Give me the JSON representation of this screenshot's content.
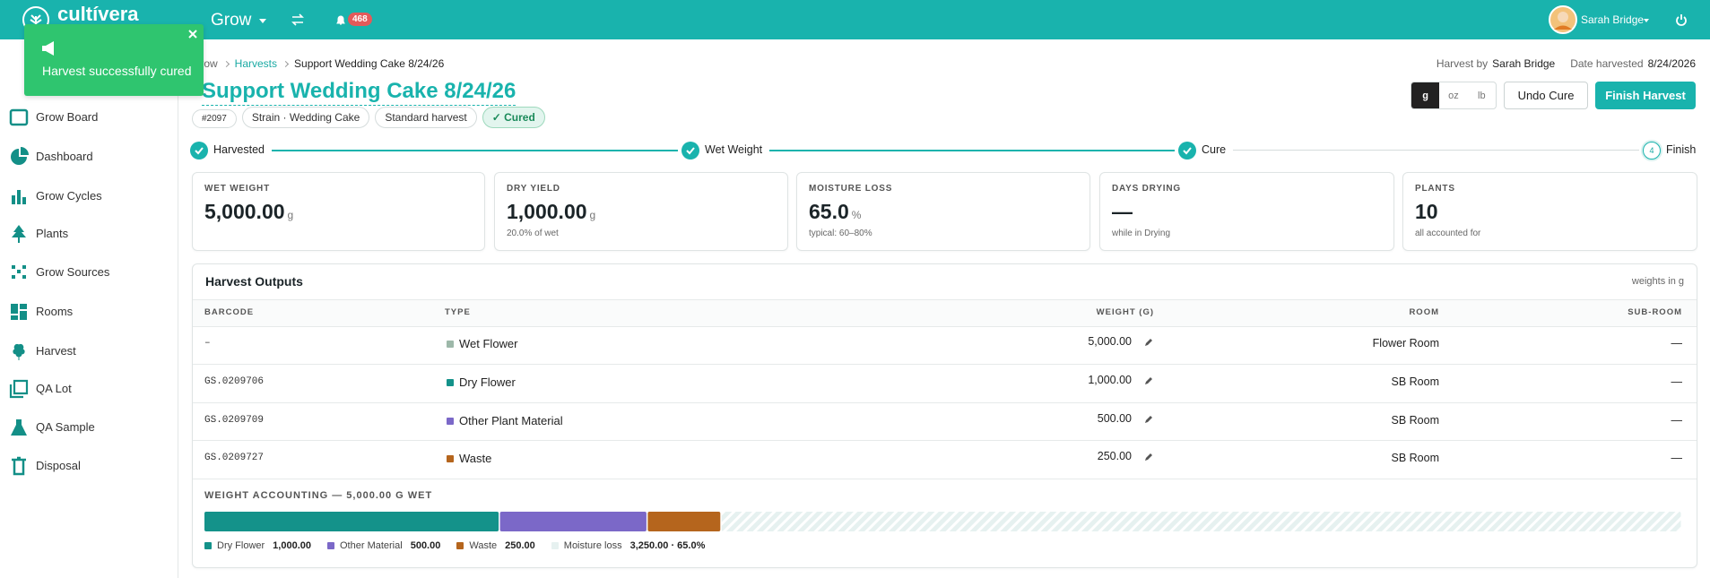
{
  "header": {
    "logo": "cultívera",
    "menu": "Grow",
    "notifications": "468",
    "user": "Sarah Bridge"
  },
  "toast": {
    "message": "Harvest successfully cured"
  },
  "sidebar": {
    "items": [
      "Grow Board",
      "Dashboard",
      "Grow Cycles",
      "Plants",
      "Grow Sources",
      "Rooms",
      "Harvest",
      "QA Lot",
      "QA Sample",
      "Disposal"
    ]
  },
  "breadcrumb": [
    "Grow",
    "Harvests",
    "Support Wedding Cake 8/24/26"
  ],
  "meta": {
    "harvest_by_label": "Harvest by",
    "harvest_by": "Sarah Bridge",
    "date_label": "Date harvested",
    "date": "8/24/2026"
  },
  "title": "Support Wedding Cake 8/24/26",
  "chips": [
    "#2097",
    "Strain · Wedding Cake",
    "Standard harvest",
    "✓ Cured"
  ],
  "units": [
    "g",
    "oz",
    "lb"
  ],
  "buttons": [
    "Undo Cure",
    "Finish Harvest"
  ],
  "steps": [
    {
      "label": "Harvested",
      "done": true
    },
    {
      "label": "Wet Weight",
      "done": true
    },
    {
      "label": "Cure",
      "done": true
    },
    {
      "label": "Finish",
      "number": 4,
      "done": false
    }
  ],
  "stats": [
    {
      "label": "WET WEIGHT",
      "value": "5,000.00",
      "unit": "g"
    },
    {
      "label": "DRY YIELD",
      "value": "1,000.00",
      "unit": "g",
      "note": "20.0% of wet"
    },
    {
      "label": "MOISTURE LOSS",
      "value": "65.0",
      "unit": "%",
      "note": "typical: 60–80%"
    },
    {
      "label": "DAYS DRYING",
      "value": "—",
      "note": "while in Drying"
    },
    {
      "label": "PLANTS",
      "value": "10",
      "note": "all accounted for"
    }
  ],
  "outputs": {
    "title": "Harvest Outputs",
    "note": "weights in g",
    "columns": [
      "BARCODE",
      "TYPE",
      "WEIGHT (G)",
      "ROOM",
      "SUB-ROOM"
    ],
    "rows": [
      {
        "barcode": "–",
        "type": "Wet Flower",
        "color": "#9db8a9",
        "weight": "5,000.00",
        "room": "Flower Room",
        "sub_room": "—"
      },
      {
        "barcode": "GS.0209706",
        "type": "Dry Flower",
        "color": "#14928a",
        "weight": "1,000.00",
        "room": "SB Room",
        "sub_room": "—"
      },
      {
        "barcode": "GS.0209709",
        "type": "Other Plant Material",
        "color": "#7b68c8",
        "weight": "500.00",
        "room": "SB Room",
        "sub_room": "—"
      },
      {
        "barcode": "GS.0209727",
        "type": "Waste",
        "color": "#b5651d",
        "weight": "250.00",
        "room": "SB Room",
        "sub_room": "—"
      }
    ]
  },
  "weight_accounting": {
    "title": "WEIGHT ACCOUNTING — 5,000.00 G WET",
    "segments": [
      {
        "name": "Dry Flower",
        "value": 1000,
        "label": "1,000.00",
        "color": "#14928a"
      },
      {
        "name": "Other Material",
        "value": 500,
        "label": "500.00",
        "color": "#7b68c8"
      },
      {
        "name": "Waste",
        "value": 250,
        "label": "250.00",
        "color": "#b5651d"
      },
      {
        "name": "Moisture loss",
        "value": 3250,
        "label": "3,250.00 · 65.0%",
        "color": "#e6f1f0"
      }
    ]
  }
}
